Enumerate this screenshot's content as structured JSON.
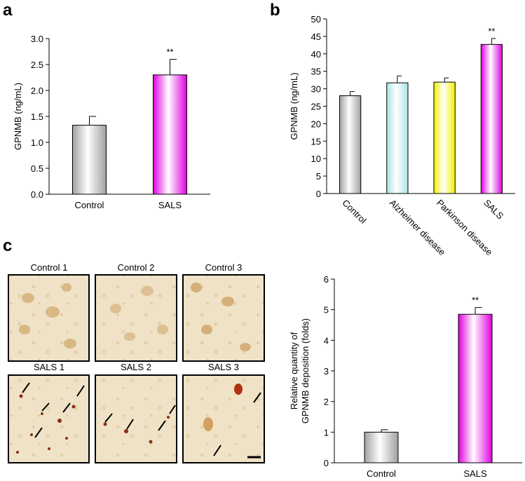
{
  "panel_labels": [
    "a",
    "b",
    "c"
  ],
  "micrographs": [
    "Control 1",
    "Control 2",
    "Control 3",
    "SALS 1",
    "SALS 2",
    "SALS 3"
  ],
  "chart_data": [
    {
      "type": "bar",
      "ylabel": [
        "GPNMB (ng/mL)"
      ],
      "categories": [
        "Control",
        "SALS"
      ],
      "values": [
        1.33,
        2.3
      ],
      "errors": [
        0.17,
        0.3
      ],
      "significance": [
        null,
        "**"
      ],
      "colors": [
        "#a0a0a0",
        "#e000e0"
      ],
      "ylim": [
        0,
        3
      ],
      "yticks": [
        {
          "value": 0,
          "label": "0.0"
        },
        0.5,
        {
          "value": 1,
          "label": "1.0"
        },
        1.5,
        {
          "value": 2,
          "label": "2.0"
        },
        2.5,
        {
          "value": 3,
          "label": "3.0"
        }
      ],
      "rotate_labels": false
    },
    {
      "type": "bar",
      "ylabel": [
        "GPNMB (ng/mL)"
      ],
      "categories": [
        "Control",
        "Alzheimer disease",
        "Parkinson disease",
        "SALS"
      ],
      "values": [
        28,
        31.7,
        31.9,
        42.7
      ],
      "errors": [
        1.2,
        2,
        1.2,
        1.7
      ],
      "significance": [
        null,
        null,
        null,
        "**"
      ],
      "colors": [
        "#a0a0a0",
        "#a8e4e4",
        "#f0f000",
        "#e000e0"
      ],
      "ylim": [
        0,
        50
      ],
      "yticks": [
        0,
        5,
        10,
        15,
        20,
        25,
        30,
        35,
        40,
        45,
        50
      ],
      "rotate_labels": true
    },
    {
      "type": "bar",
      "ylabel": [
        "Relative quantity of",
        "GPNMB deposition  (folds)"
      ],
      "categories": [
        "Control",
        "SALS"
      ],
      "values": [
        1.0,
        4.85
      ],
      "errors": [
        0.08,
        0.22
      ],
      "significance": [
        null,
        "**"
      ],
      "colors": [
        "#a0a0a0",
        "#e000e0"
      ],
      "ylim": [
        0,
        6
      ],
      "yticks": [
        0,
        1,
        2,
        3,
        4,
        5,
        6
      ],
      "rotate_labels": false
    }
  ]
}
